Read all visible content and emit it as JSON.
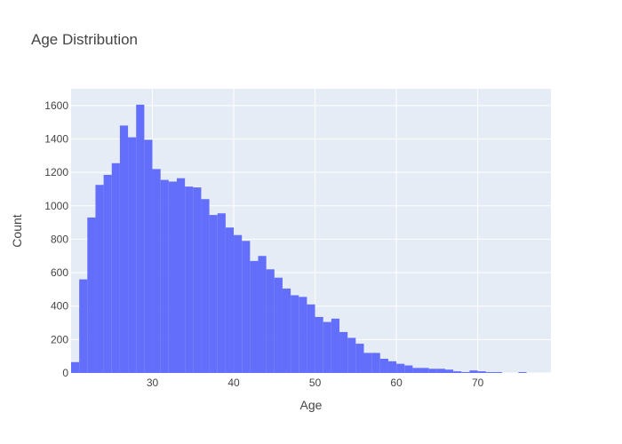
{
  "chart_data": {
    "type": "bar",
    "title": "Age Distribution",
    "xlabel": "Age",
    "ylabel": "Count",
    "bin_width": 1,
    "bins_start": [
      20,
      21,
      22,
      23,
      24,
      25,
      26,
      27,
      28,
      29,
      30,
      31,
      32,
      33,
      34,
      35,
      36,
      37,
      38,
      39,
      40,
      41,
      42,
      43,
      44,
      45,
      46,
      47,
      48,
      49,
      50,
      51,
      52,
      53,
      54,
      55,
      56,
      57,
      58,
      59,
      60,
      61,
      62,
      63,
      64,
      65,
      66,
      67,
      68,
      69,
      70,
      71,
      72,
      73,
      74,
      75,
      76,
      77,
      78
    ],
    "values": [
      65,
      560,
      930,
      1125,
      1185,
      1255,
      1480,
      1410,
      1605,
      1395,
      1220,
      1155,
      1145,
      1165,
      1115,
      1110,
      1040,
      945,
      955,
      870,
      825,
      790,
      670,
      700,
      620,
      570,
      505,
      465,
      455,
      410,
      335,
      305,
      325,
      245,
      210,
      175,
      120,
      120,
      85,
      70,
      55,
      45,
      30,
      30,
      25,
      25,
      20,
      10,
      5,
      15,
      10,
      5,
      5,
      0,
      0,
      5,
      0,
      0,
      0
    ],
    "xlim": [
      20,
      79
    ],
    "ylim": [
      0,
      1700
    ],
    "x_ticks": [
      30,
      40,
      50,
      60,
      70
    ],
    "y_ticks": [
      0,
      200,
      400,
      600,
      800,
      1000,
      1200,
      1400,
      1600
    ],
    "bar_color": "#636efa",
    "plot_bg_color": "#e5ecf6",
    "grid_color": "#ffffff",
    "grid": true
  }
}
